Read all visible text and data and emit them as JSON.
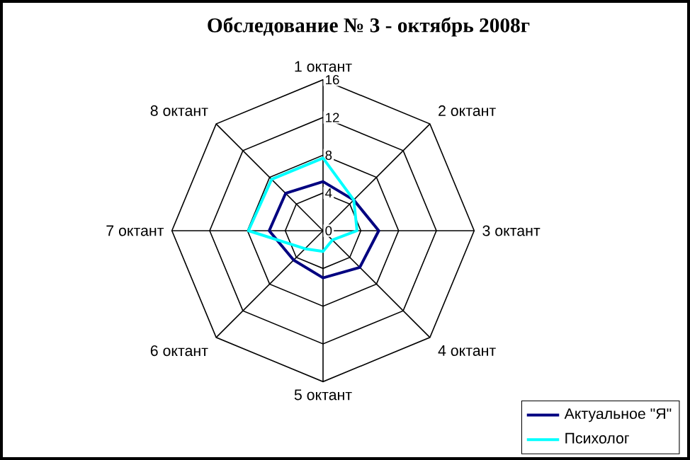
{
  "chart_data": {
    "type": "radar",
    "title": "Обследование № 3 -  октябрь 2008г",
    "categories": [
      "1 октант",
      "2 октант",
      "3 октант",
      "4 октант",
      "5 октант",
      "6 октант",
      "7 октант",
      "8 октант"
    ],
    "series": [
      {
        "name": "Актуальное \"Я\"",
        "color": "#000080",
        "values": [
          5.2,
          4.6,
          5.9,
          5.5,
          5,
          4.4,
          5.7,
          5.6
        ]
      },
      {
        "name": "Психолог",
        "color": "#00ffff",
        "values": [
          7.7,
          4.6,
          3.6,
          1.4,
          2.2,
          2.7,
          7.9,
          7.7
        ]
      }
    ],
    "ylim": [
      0,
      16
    ],
    "yticks": [
      0,
      4,
      8,
      12,
      16
    ],
    "grid": true,
    "legend": "bottom right"
  }
}
